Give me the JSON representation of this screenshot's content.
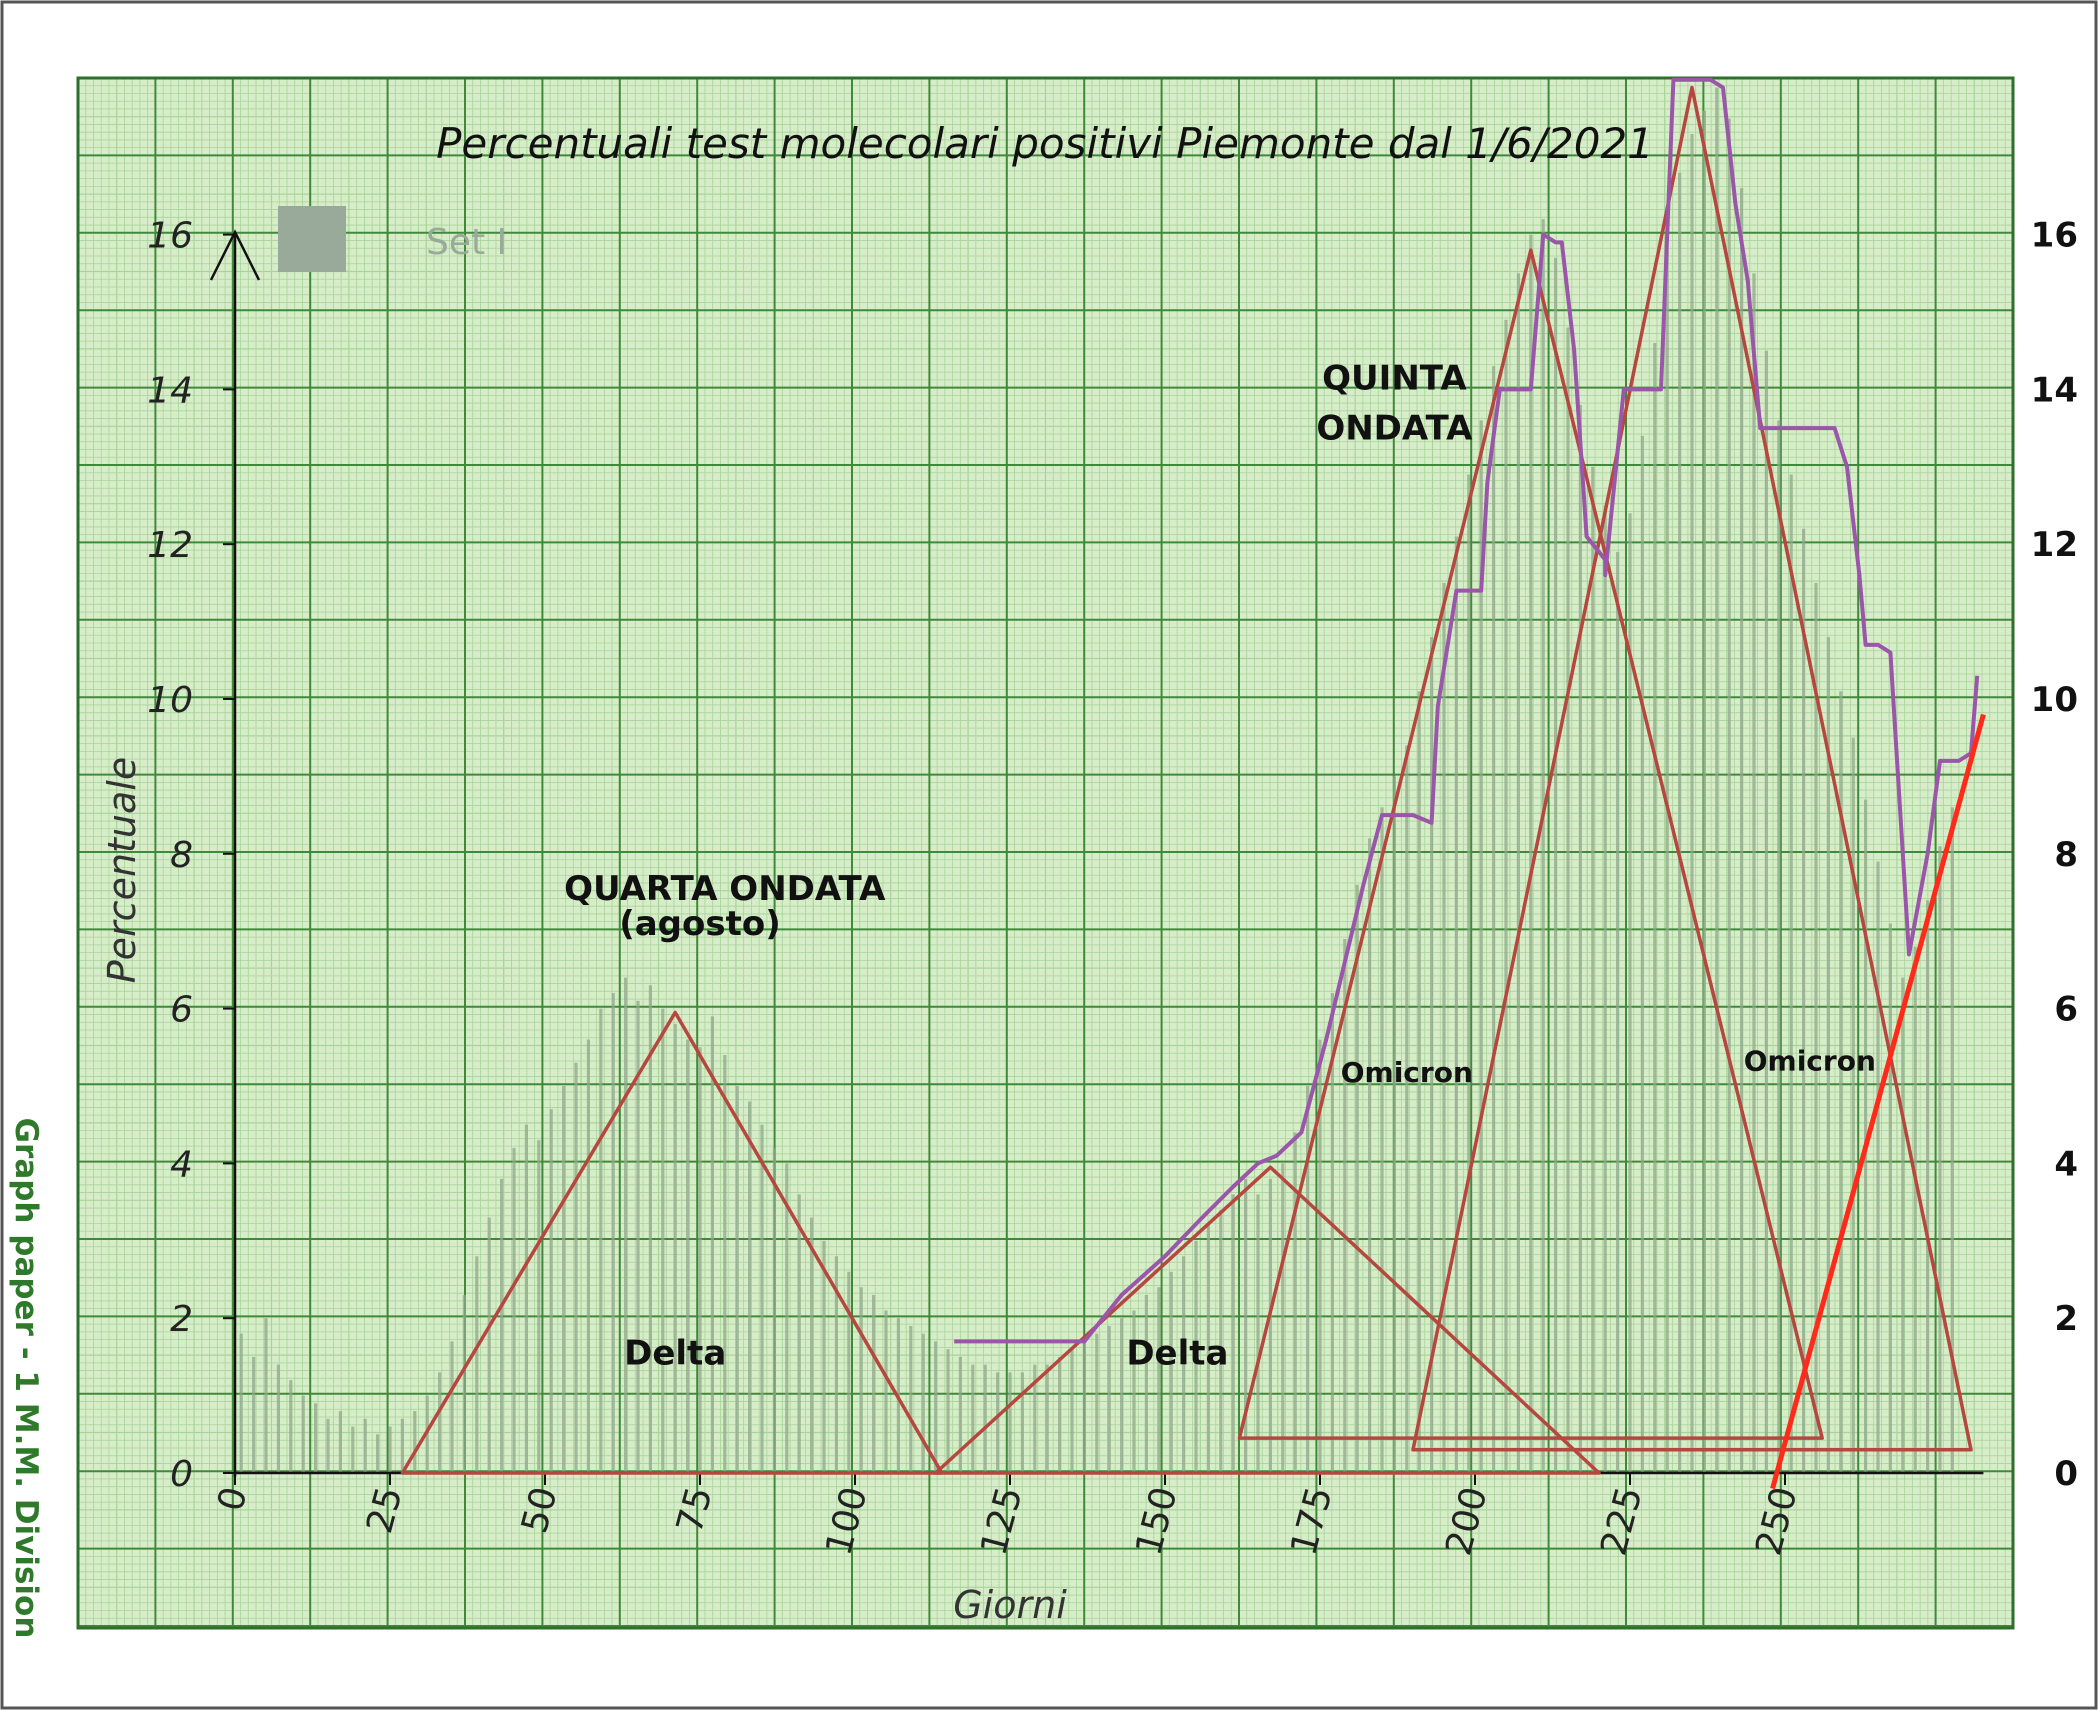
{
  "chart_data": {
    "type": "bar",
    "title": "Percentuali test molecolari positivi Piemonte dal 1/6/2021",
    "xlabel": "Giorni",
    "ylabel": "Percentuale",
    "xlim": [
      0,
      282
    ],
    "ylim": [
      0,
      18
    ],
    "x_ticks": [
      0,
      25,
      50,
      75,
      100,
      125,
      150,
      175,
      200,
      225,
      250
    ],
    "y_ticks": [
      0,
      2,
      4,
      6,
      8,
      10,
      12,
      14,
      16
    ],
    "right_y_ticks": [
      0,
      2,
      4,
      6,
      8,
      10,
      12,
      14,
      16
    ],
    "grid": true,
    "legend": {
      "placement": "top-left",
      "label": "Set I",
      "color": "#9aaa9a"
    },
    "side_caption": "Graph paper - 1 M.M. Division",
    "colors": {
      "paper": "#d7ecc8",
      "grid_minor": "#a8d49a",
      "grid_major": "#3f8a3a",
      "bars": "#8fa88a",
      "triangles": "#b5473f",
      "trend": "#9a56a9",
      "fit": "#ff2a1a"
    },
    "annotations": [
      {
        "text": "QUARTA ONDATA",
        "x": 79,
        "y": 7.4
      },
      {
        "text": "(agosto)",
        "x": 75,
        "y": 6.95
      },
      {
        "text": "QUINTA",
        "x": 187,
        "y": 14.0
      },
      {
        "text": "ONDATA",
        "x": 187,
        "y": 13.35
      },
      {
        "text": "Delta",
        "x": 71,
        "y": 1.4
      },
      {
        "text": "Delta",
        "x": 152,
        "y": 1.4
      },
      {
        "text": "Omicron",
        "x": 189,
        "y": 5.05
      },
      {
        "text": "Omicron",
        "x": 254,
        "y": 5.2
      }
    ],
    "series": [
      {
        "type": "bar",
        "x": [
          1,
          3,
          5,
          7,
          9,
          11,
          13,
          15,
          17,
          19,
          21,
          23,
          25,
          27,
          29,
          31,
          33,
          35,
          37,
          39,
          41,
          43,
          45,
          47,
          49,
          51,
          53,
          55,
          57,
          59,
          61,
          63,
          65,
          67,
          69,
          71,
          73,
          75,
          77,
          79,
          81,
          83,
          85,
          87,
          89,
          91,
          93,
          95,
          97,
          99,
          101,
          103,
          105,
          107,
          109,
          111,
          113,
          115,
          117,
          119,
          121,
          123,
          125,
          127,
          129,
          131,
          133,
          135,
          137,
          139,
          141,
          143,
          145,
          147,
          149,
          151,
          153,
          155,
          157,
          159,
          161,
          163,
          165,
          167,
          169,
          171,
          173,
          175,
          177,
          179,
          181,
          183,
          185,
          187,
          189,
          191,
          193,
          195,
          197,
          199,
          201,
          203,
          205,
          207,
          209,
          211,
          213,
          215,
          217,
          219,
          221,
          223,
          225,
          227,
          229,
          231,
          233,
          235,
          237,
          239,
          241,
          243,
          245,
          247,
          249,
          251,
          253,
          255,
          257,
          259,
          261,
          263,
          265,
          267,
          269,
          271,
          273,
          275,
          277
        ],
        "values": [
          1.8,
          1.5,
          2.0,
          1.4,
          1.2,
          1.0,
          0.9,
          0.7,
          0.8,
          0.6,
          0.7,
          0.5,
          0.6,
          0.7,
          0.8,
          1.0,
          1.3,
          1.7,
          2.3,
          2.8,
          3.3,
          3.8,
          4.2,
          4.5,
          4.3,
          4.7,
          5.0,
          5.3,
          5.6,
          6.0,
          6.2,
          6.4,
          6.1,
          6.3,
          6.0,
          5.8,
          5.6,
          5.5,
          5.9,
          5.4,
          5.0,
          4.8,
          4.5,
          4.2,
          4.0,
          3.6,
          3.3,
          3.0,
          2.8,
          2.6,
          2.4,
          2.3,
          2.1,
          2.0,
          1.9,
          1.8,
          1.7,
          1.6,
          1.5,
          1.4,
          1.4,
          1.3,
          1.3,
          1.3,
          1.4,
          1.4,
          1.5,
          1.6,
          1.7,
          1.8,
          1.9,
          2.0,
          2.1,
          2.3,
          2.4,
          2.6,
          2.8,
          3.0,
          3.2,
          3.4,
          3.6,
          3.8,
          3.6,
          3.8,
          4.0,
          4.4,
          5.0,
          5.6,
          6.2,
          6.9,
          7.6,
          8.2,
          8.6,
          9.0,
          9.4,
          10.1,
          10.8,
          11.5,
          12.1,
          12.9,
          13.6,
          14.3,
          14.9,
          15.5,
          16.0,
          16.2,
          15.7,
          14.8,
          13.8,
          13.0,
          12.5,
          11.9,
          12.4,
          13.4,
          14.6,
          15.8,
          16.8,
          17.3,
          17.6,
          17.9,
          17.5,
          16.6,
          15.5,
          14.5,
          13.6,
          12.9,
          12.2,
          11.5,
          10.8,
          10.1,
          9.5,
          8.7,
          7.9,
          7.1,
          6.4,
          6.8,
          7.4,
          8.1,
          8.6
        ]
      },
      {
        "type": "triangle",
        "name": "",
        "points": [
          [
            27,
            0
          ],
          [
            71,
            5.95
          ],
          [
            114,
            0
          ]
        ]
      },
      {
        "type": "triangle",
        "name": "",
        "points": [
          [
            113,
            0
          ],
          [
            167,
            3.95
          ],
          [
            220,
            0
          ]
        ]
      },
      {
        "type": "triangle",
        "name": "",
        "points": [
          [
            162,
            0.45
          ],
          [
            209,
            15.8
          ],
          [
            256,
            0.45
          ]
        ]
      },
      {
        "type": "triangle",
        "name": "",
        "points": [
          [
            190,
            0.3
          ],
          [
            235,
            17.9
          ],
          [
            280,
            0.3
          ]
        ]
      },
      {
        "type": "line",
        "name": "",
        "x": [
          116,
          124,
          132,
          137,
          143,
          150,
          156,
          161,
          165,
          168,
          172,
          176,
          179,
          182,
          185,
          187,
          188,
          190,
          193,
          194,
          197,
          199,
          201,
          202,
          204,
          207,
          209,
          211,
          213,
          214,
          216,
          218,
          221,
          221,
          224,
          227,
          229,
          230,
          232,
          234,
          236,
          238,
          240,
          242,
          244,
          246,
          248,
          250,
          252,
          254,
          256,
          258,
          260,
          262,
          263,
          265,
          267,
          270,
          273,
          275,
          276,
          278,
          280,
          281
        ],
        "y": [
          1.7,
          1.7,
          1.7,
          1.7,
          2.3,
          2.8,
          3.3,
          3.7,
          4.0,
          4.1,
          4.4,
          5.6,
          6.6,
          7.6,
          8.5,
          8.5,
          8.5,
          8.5,
          8.4,
          9.9,
          11.4,
          11.4,
          11.4,
          12.8,
          14.0,
          14.0,
          14.0,
          16.0,
          15.9,
          15.9,
          14.5,
          12.1,
          11.8,
          11.6,
          14.0,
          14.0,
          14.0,
          14.0,
          18.0,
          18.0,
          18.0,
          18.0,
          17.9,
          16.4,
          15.4,
          13.5,
          13.5,
          13.5,
          13.5,
          13.5,
          13.5,
          13.5,
          13.0,
          11.6,
          10.7,
          10.7,
          10.6,
          6.7,
          8.0,
          9.2,
          9.2,
          9.2,
          9.3,
          10.3
        ]
      },
      {
        "type": "line",
        "name": "",
        "x": [
          248,
          282
        ],
        "y": [
          -0.2,
          9.8
        ]
      }
    ]
  }
}
